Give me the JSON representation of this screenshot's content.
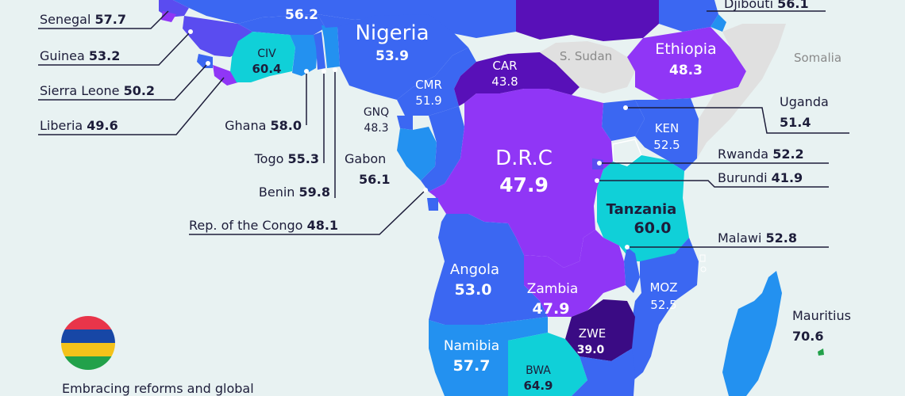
{
  "legend": {
    "colors": {
      "top_band": "#e8354a",
      "middle_band": "#1747a6",
      "lower_band": "#f4c21a",
      "bottom_band": "#22a14a"
    }
  },
  "caption": "Embracing reforms and global",
  "palette": {
    "cyan": "#10d0d8",
    "sky": "#2391f0",
    "blue": "#3b67f2",
    "indigo": "#5a4cf0",
    "purple": "#9036f6",
    "deep": "#5810b8",
    "darkest": "#3a0b84",
    "grey": "#e0e0e0",
    "ocean": "#e8f2f2"
  },
  "map_labels": {
    "top_left": {
      "value": "56.2"
    },
    "nigeria": {
      "name": "Nigeria",
      "value": "53.9"
    },
    "civ": {
      "name": "CIV",
      "value": "60.4"
    },
    "car": {
      "name": "CAR",
      "value": "43.8"
    },
    "cmr": {
      "name": "CMR",
      "value": "51.9"
    },
    "gnq": {
      "name": "GNQ",
      "value": "48.3"
    },
    "ethiopia": {
      "name": "Ethiopia",
      "value": "48.3"
    },
    "s_sudan": {
      "name": "S. Sudan"
    },
    "somalia": {
      "name": "Somalia"
    },
    "ken": {
      "name": "KEN",
      "value": "52.5"
    },
    "drc": {
      "name": "D.R.C",
      "value": "47.9"
    },
    "tanzania": {
      "name": "Tanzania",
      "value": "60.0"
    },
    "angola": {
      "name": "Angola",
      "value": "53.0"
    },
    "zambia": {
      "name": "Zambia",
      "value": "47.9"
    },
    "moz": {
      "name": "MOZ",
      "value": "52.5"
    },
    "zwe": {
      "name": "ZWE",
      "value": "39.0"
    },
    "namibia": {
      "name": "Namibia",
      "value": "57.7"
    },
    "bwa": {
      "name": "BWA",
      "value": "64.9"
    }
  },
  "callouts": {
    "senegal": {
      "name": "Senegal",
      "value": "57.7"
    },
    "guinea": {
      "name": "Guinea",
      "value": "53.2"
    },
    "sierra_leone": {
      "name": "Sierra Leone",
      "value": "50.2"
    },
    "liberia": {
      "name": "Liberia",
      "value": "49.6"
    },
    "ghana": {
      "name": "Ghana",
      "value": "58.0"
    },
    "togo": {
      "name": "Togo",
      "value": "55.3"
    },
    "benin": {
      "name": "Benin",
      "value": "59.8"
    },
    "gabon": {
      "name": "Gabon",
      "value": "56.1"
    },
    "congo": {
      "name": "Rep. of the Congo",
      "value": "48.1"
    },
    "djibouti": {
      "name": "Djibouti",
      "value": "56.1"
    },
    "uganda": {
      "name": "Uganda",
      "value": "51.4"
    },
    "rwanda": {
      "name": "Rwanda",
      "value": "52.2"
    },
    "burundi": {
      "name": "Burundi",
      "value": "41.9"
    },
    "malawi": {
      "name": "Malawi",
      "value": "52.8"
    },
    "mauritius": {
      "name": "Mauritius",
      "value": "70.6"
    }
  }
}
